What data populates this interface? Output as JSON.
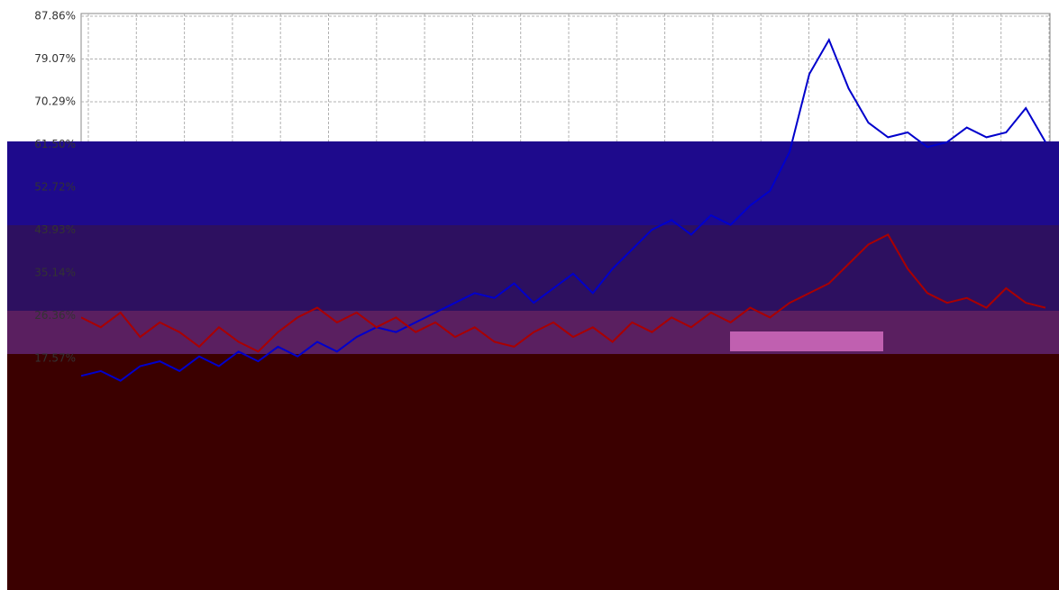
{
  "chart_data": {
    "type": "line",
    "ylim": [
      -29.96,
      87.86
    ],
    "yticks": [
      {
        "value": 87.86,
        "label": "87.86%"
      },
      {
        "value": 79.07,
        "label": "79.07%"
      },
      {
        "value": 70.29,
        "label": "70.29%"
      },
      {
        "value": 61.5,
        "label": "61.50%"
      },
      {
        "value": 52.72,
        "label": "52.72%"
      },
      {
        "value": 43.93,
        "label": "43.93%"
      },
      {
        "value": 35.14,
        "label": "35.14%"
      },
      {
        "value": 26.36,
        "label": "26.36%"
      },
      {
        "value": 17.57,
        "label": "17.57%"
      }
    ],
    "grid": true,
    "series": [
      {
        "color": "#0000cc",
        "values": [
          14,
          15,
          13,
          16,
          17,
          15,
          18,
          16,
          19,
          17,
          20,
          18,
          21,
          19,
          22,
          24,
          23,
          25,
          27,
          29,
          31,
          30,
          33,
          29,
          32,
          35,
          31,
          36,
          40,
          44,
          46,
          43,
          47,
          45,
          49,
          52,
          60,
          76,
          83,
          73,
          66,
          63,
          64,
          61,
          62,
          65,
          63,
          64,
          69,
          62
        ]
      },
      {
        "color": "#aa0000",
        "values": [
          26,
          24,
          27,
          22,
          25,
          23,
          20,
          24,
          21,
          19,
          23,
          26,
          28,
          25,
          27,
          24,
          26,
          23,
          25,
          22,
          24,
          21,
          20,
          23,
          25,
          22,
          24,
          21,
          25,
          23,
          26,
          24,
          27,
          25,
          28,
          26,
          29,
          31,
          33,
          37,
          41,
          43,
          36,
          31,
          29,
          30,
          28,
          32,
          29,
          28
        ]
      }
    ]
  }
}
